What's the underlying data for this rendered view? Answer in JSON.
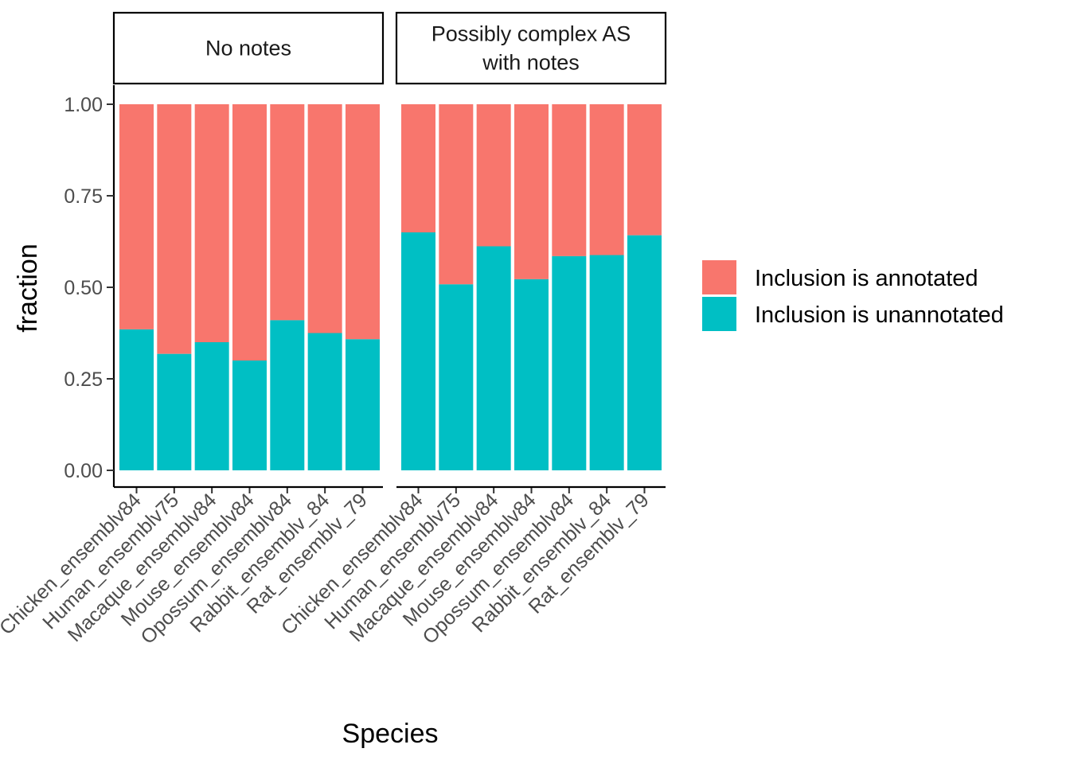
{
  "chart_data": {
    "type": "bar",
    "stacked": true,
    "xlabel": "Species",
    "ylabel": "fraction",
    "ylim": [
      0,
      1
    ],
    "yticks": [
      "0.00",
      "0.25",
      "0.50",
      "0.75",
      "1.00"
    ],
    "ytick_values": [
      0,
      0.25,
      0.5,
      0.75,
      1.0
    ],
    "grid": false,
    "legend_position": "right",
    "categories": [
      "Chicken_ensemblv84",
      "Human_ensemblv75",
      "Macaque_ensemblv84",
      "Mouse_ensemblv84",
      "Opossum_ensemblv84",
      "Rabbit_ensemblv_84",
      "Rat_ensemblv_79"
    ],
    "series": [
      {
        "name": "Inclusion is annotated",
        "color": "#F8766D"
      },
      {
        "name": "Inclusion is unannotated",
        "color": "#00BFC4"
      }
    ],
    "facets": [
      {
        "label_lines": [
          "No notes"
        ],
        "unannotated_values": [
          0.385,
          0.318,
          0.35,
          0.3,
          0.41,
          0.375,
          0.358
        ],
        "annotated_values": [
          0.615,
          0.682,
          0.65,
          0.7,
          0.59,
          0.625,
          0.642
        ]
      },
      {
        "label_lines": [
          "Possibly complex AS",
          "with notes"
        ],
        "unannotated_values": [
          0.65,
          0.508,
          0.612,
          0.522,
          0.585,
          0.588,
          0.642
        ],
        "annotated_values": [
          0.35,
          0.492,
          0.388,
          0.478,
          0.415,
          0.412,
          0.358
        ]
      }
    ]
  }
}
